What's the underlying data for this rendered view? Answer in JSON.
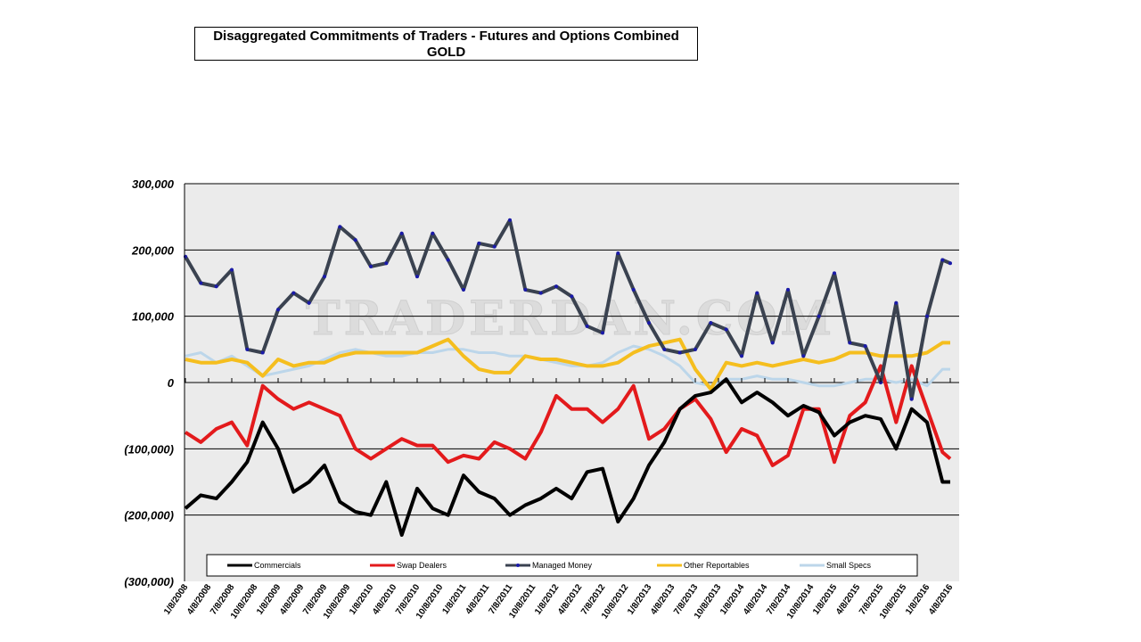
{
  "chart_data": {
    "type": "line",
    "title": "Disaggregated Commitments of Traders - Futures and Options Combined",
    "subtitle": "GOLD",
    "watermark": "TRADERDAN.COM",
    "xlabel": "",
    "ylabel": "",
    "ylim": [
      -300000,
      300000
    ],
    "yticks": [
      300000,
      200000,
      100000,
      0,
      -100000,
      -200000,
      -300000
    ],
    "ytick_labels": [
      "300,000",
      "200,000",
      "100,000",
      "0",
      "(100,000)",
      "(200,000)",
      "(300,000)"
    ],
    "xtick_labels": [
      "1/8/2008",
      "4/8/2008",
      "7/8/2008",
      "10/8/2008",
      "1/8/2009",
      "4/8/2009",
      "7/8/2009",
      "10/8/2009",
      "1/8/2010",
      "4/8/2010",
      "7/8/2010",
      "10/8/2010",
      "1/8/2011",
      "4/8/2011",
      "7/8/2011",
      "10/8/2011",
      "1/8/2012",
      "4/8/2012",
      "7/8/2012",
      "10/8/2012",
      "1/8/2013",
      "4/8/2013",
      "7/8/2013",
      "10/8/2013",
      "1/8/2014",
      "4/8/2014",
      "7/8/2014",
      "10/8/2014",
      "1/8/2015",
      "4/8/2015",
      "7/8/2015",
      "10/8/2015",
      "1/8/2016",
      "4/8/2016"
    ],
    "grid": "horizontal",
    "legend_placement": "bottom",
    "x": [
      "2008-01",
      "2008-03",
      "2008-05",
      "2008-07",
      "2008-09",
      "2008-11",
      "2009-01",
      "2009-03",
      "2009-05",
      "2009-07",
      "2009-09",
      "2009-11",
      "2010-01",
      "2010-03",
      "2010-05",
      "2010-07",
      "2010-09",
      "2010-11",
      "2011-01",
      "2011-03",
      "2011-05",
      "2011-07",
      "2011-09",
      "2011-11",
      "2012-01",
      "2012-03",
      "2012-05",
      "2012-07",
      "2012-09",
      "2012-11",
      "2013-01",
      "2013-03",
      "2013-05",
      "2013-07",
      "2013-09",
      "2013-11",
      "2014-01",
      "2014-03",
      "2014-05",
      "2014-07",
      "2014-09",
      "2014-11",
      "2015-01",
      "2015-03",
      "2015-05",
      "2015-07",
      "2015-09",
      "2015-11",
      "2016-01",
      "2016-03",
      "2016-04"
    ],
    "series": [
      {
        "name": "Commercials",
        "color": "#000000",
        "values": [
          -190000,
          -170000,
          -175000,
          -150000,
          -120000,
          -60000,
          -100000,
          -165000,
          -150000,
          -125000,
          -180000,
          -195000,
          -200000,
          -150000,
          -230000,
          -160000,
          -190000,
          -200000,
          -140000,
          -165000,
          -175000,
          -200000,
          -185000,
          -175000,
          -160000,
          -175000,
          -135000,
          -130000,
          -210000,
          -175000,
          -125000,
          -90000,
          -40000,
          -20000,
          -15000,
          5000,
          -30000,
          -15000,
          -30000,
          -50000,
          -35000,
          -45000,
          -80000,
          -60000,
          -50000,
          -55000,
          -100000,
          -40000,
          -60000,
          -150000,
          -150000
        ]
      },
      {
        "name": "Swap Dealers",
        "color": "#e31a1c",
        "values": [
          -75000,
          -90000,
          -70000,
          -60000,
          -95000,
          -5000,
          -25000,
          -40000,
          -30000,
          -40000,
          -50000,
          -100000,
          -115000,
          -100000,
          -85000,
          -95000,
          -95000,
          -120000,
          -110000,
          -115000,
          -90000,
          -100000,
          -115000,
          -75000,
          -20000,
          -40000,
          -40000,
          -60000,
          -40000,
          -5000,
          -85000,
          -70000,
          -40000,
          -25000,
          -55000,
          -105000,
          -70000,
          -80000,
          -125000,
          -110000,
          -40000,
          -40000,
          -120000,
          -50000,
          -30000,
          25000,
          -60000,
          25000,
          -40000,
          -105000,
          -115000
        ]
      },
      {
        "name": "Managed Money",
        "color": "#3a4250",
        "marker_color": "#1a1aaa",
        "values": [
          190000,
          150000,
          145000,
          170000,
          50000,
          45000,
          110000,
          135000,
          120000,
          160000,
          235000,
          215000,
          175000,
          180000,
          225000,
          160000,
          225000,
          185000,
          140000,
          210000,
          205000,
          245000,
          140000,
          135000,
          145000,
          130000,
          85000,
          75000,
          195000,
          140000,
          90000,
          50000,
          45000,
          50000,
          90000,
          80000,
          40000,
          135000,
          60000,
          140000,
          40000,
          100000,
          165000,
          60000,
          55000,
          0,
          120000,
          -25000,
          100000,
          185000,
          180000
        ]
      },
      {
        "name": "Other Reportables",
        "color": "#f5be1e",
        "values": [
          35000,
          30000,
          30000,
          35000,
          30000,
          10000,
          35000,
          25000,
          30000,
          30000,
          40000,
          45000,
          45000,
          45000,
          45000,
          45000,
          55000,
          65000,
          40000,
          20000,
          15000,
          15000,
          40000,
          35000,
          35000,
          30000,
          25000,
          25000,
          30000,
          45000,
          55000,
          60000,
          65000,
          20000,
          -10000,
          30000,
          25000,
          30000,
          25000,
          30000,
          35000,
          30000,
          35000,
          45000,
          45000,
          40000,
          40000,
          40000,
          45000,
          60000,
          60000
        ]
      },
      {
        "name": "Small Specs",
        "color": "#bcd6ea",
        "values": [
          40000,
          45000,
          30000,
          40000,
          25000,
          10000,
          15000,
          20000,
          25000,
          35000,
          45000,
          50000,
          45000,
          40000,
          40000,
          45000,
          45000,
          50000,
          50000,
          45000,
          45000,
          40000,
          40000,
          35000,
          30000,
          25000,
          25000,
          30000,
          45000,
          55000,
          50000,
          40000,
          25000,
          0,
          -5000,
          5000,
          5000,
          10000,
          5000,
          5000,
          0,
          -5000,
          -5000,
          0,
          5000,
          5000,
          0,
          5000,
          -5000,
          20000,
          20000
        ]
      }
    ]
  }
}
